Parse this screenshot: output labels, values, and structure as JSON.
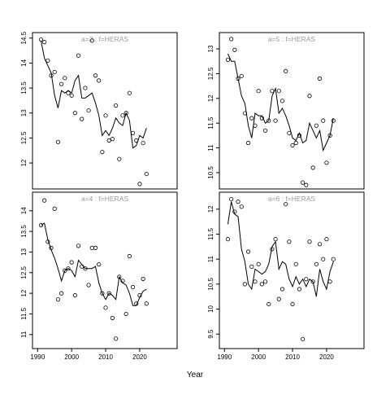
{
  "xlabel": "Year",
  "chart_data": [
    {
      "type": "line",
      "title": "a=3 : f=HERAS",
      "x": [
        1991,
        1992,
        1993,
        1994,
        1995,
        1996,
        1997,
        1998,
        1999,
        2000,
        2001,
        2002,
        2003,
        2004,
        2005,
        2006,
        2007,
        2008,
        2009,
        2010,
        2011,
        2012,
        2013,
        2014,
        2015,
        2016,
        2017,
        2018,
        2019,
        2020,
        2021,
        2022
      ],
      "series": [
        {
          "marker": "circle",
          "color": "#000000",
          "values": [
            14.47,
            14.42,
            14.05,
            13.75,
            13.82,
            12.42,
            13.58,
            13.7,
            13.4,
            13.35,
            13.0,
            14.15,
            12.88,
            13.5,
            13.05,
            14.45,
            13.75,
            13.65,
            12.22,
            12.95,
            12.45,
            12.48,
            13.15,
            12.08,
            12.95,
            13.0,
            13.4,
            12.6,
            12.45,
            11.58,
            12.4,
            11.78
          ]
        },
        {
          "marker": "line",
          "color": "#000000",
          "values": [
            14.45,
            14.1,
            13.95,
            13.8,
            13.35,
            13.1,
            13.45,
            13.4,
            13.45,
            13.4,
            13.65,
            13.75,
            13.3,
            13.3,
            13.35,
            13.4,
            13.2,
            12.95,
            12.55,
            12.65,
            12.55,
            12.7,
            12.9,
            12.8,
            12.75,
            13.0,
            12.85,
            12.3,
            12.35,
            12.55,
            12.5,
            12.7
          ]
        }
      ],
      "xlim": [
        1988.5,
        2031
      ],
      "ylim": [
        11.48,
        14.61
      ],
      "yticks": [
        12.0,
        12.5,
        13.0,
        13.5,
        14.0,
        14.5
      ]
    },
    {
      "type": "line",
      "title": "a=5 : f=HERAS",
      "x": [
        1991,
        1992,
        1993,
        1994,
        1995,
        1996,
        1997,
        1998,
        1999,
        2000,
        2001,
        2002,
        2003,
        2004,
        2005,
        2006,
        2007,
        2008,
        2009,
        2010,
        2011,
        2012,
        2013,
        2014,
        2015,
        2016,
        2017,
        2018,
        2019,
        2020,
        2021,
        2022
      ],
      "series": [
        {
          "marker": "circle",
          "color": "#000000",
          "values": [
            12.78,
            13.2,
            12.98,
            12.4,
            12.45,
            11.7,
            11.1,
            11.6,
            11.45,
            12.15,
            11.6,
            11.35,
            11.55,
            12.15,
            11.55,
            12.15,
            11.95,
            12.55,
            11.3,
            11.05,
            11.1,
            11.25,
            10.3,
            10.25,
            12.05,
            10.6,
            11.45,
            12.4,
            11.55,
            10.7,
            11.25,
            11.55
          ]
        },
        {
          "marker": "line",
          "color": "#000000",
          "values": [
            12.9,
            12.75,
            12.75,
            12.4,
            12.05,
            11.9,
            11.45,
            11.2,
            11.7,
            11.65,
            11.65,
            11.5,
            11.55,
            12.05,
            12.2,
            11.7,
            11.8,
            11.65,
            11.45,
            11.2,
            11.15,
            11.3,
            11.1,
            11.15,
            11.5,
            11.35,
            11.2,
            11.35,
            10.95,
            11.1,
            11.25,
            11.6
          ]
        }
      ],
      "xlim": [
        1988.5,
        2031
      ],
      "ylim": [
        10.17,
        13.33
      ],
      "yticks": [
        10.5,
        11.0,
        11.5,
        12.0,
        12.5,
        13.0
      ]
    },
    {
      "type": "line",
      "title": "a=4 : f=HERAS",
      "x": [
        1991,
        1992,
        1993,
        1994,
        1995,
        1996,
        1997,
        1998,
        1999,
        2000,
        2001,
        2002,
        2003,
        2004,
        2005,
        2006,
        2007,
        2008,
        2009,
        2010,
        2011,
        2012,
        2013,
        2014,
        2015,
        2016,
        2017,
        2018,
        2019,
        2020,
        2021,
        2022
      ],
      "series": [
        {
          "marker": "circle",
          "color": "#000000",
          "values": [
            13.65,
            14.25,
            13.25,
            13.1,
            14.05,
            11.85,
            12.0,
            12.55,
            12.6,
            12.75,
            11.95,
            13.15,
            12.65,
            12.6,
            12.2,
            13.1,
            13.1,
            12.7,
            12.0,
            11.65,
            12.0,
            11.4,
            10.9,
            12.4,
            12.3,
            11.5,
            12.9,
            12.15,
            11.75,
            11.95,
            12.35,
            11.75
          ]
        },
        {
          "marker": "line",
          "color": "#000000",
          "values": [
            13.65,
            13.7,
            13.3,
            13.05,
            12.85,
            12.6,
            12.3,
            12.55,
            12.6,
            12.55,
            12.4,
            12.8,
            12.7,
            12.6,
            12.6,
            12.6,
            12.65,
            12.25,
            12.0,
            11.85,
            12.0,
            11.95,
            11.85,
            12.4,
            12.25,
            12.2,
            12.0,
            11.7,
            11.7,
            11.9,
            12.05,
            12.1
          ]
        }
      ],
      "xlim": [
        1988.5,
        2031
      ],
      "ylim": [
        10.66,
        14.45
      ],
      "xticks": [
        1990,
        2000,
        2010,
        2020
      ],
      "yticks": [
        11.0,
        11.5,
        12.0,
        12.5,
        13.0,
        13.5,
        14.0
      ]
    },
    {
      "type": "line",
      "title": "a=6 : f=HERAS",
      "x": [
        1991,
        1992,
        1993,
        1994,
        1995,
        1996,
        1997,
        1998,
        1999,
        2000,
        2001,
        2002,
        2003,
        2004,
        2005,
        2006,
        2007,
        2008,
        2009,
        2010,
        2011,
        2012,
        2013,
        2014,
        2015,
        2016,
        2017,
        2018,
        2019,
        2020,
        2021,
        2022
      ],
      "series": [
        {
          "marker": "circle",
          "color": "#000000",
          "values": [
            11.4,
            12.2,
            11.95,
            12.15,
            12.05,
            10.5,
            11.15,
            10.85,
            10.55,
            10.9,
            10.5,
            10.55,
            10.1,
            11.2,
            11.4,
            10.2,
            10.4,
            12.1,
            11.35,
            10.1,
            10.9,
            10.4,
            9.4,
            10.6,
            11.35,
            10.55,
            10.9,
            11.3,
            11.0,
            11.4,
            10.55,
            11.0
          ]
        },
        {
          "marker": "line",
          "color": "#000000",
          "values": [
            11.7,
            12.15,
            11.9,
            11.85,
            11.2,
            10.95,
            10.5,
            10.4,
            10.8,
            10.75,
            10.7,
            10.75,
            10.9,
            11.25,
            11.35,
            10.8,
            10.95,
            10.9,
            10.6,
            10.45,
            10.65,
            10.5,
            10.6,
            10.45,
            10.6,
            10.55,
            10.25,
            10.8,
            10.55,
            10.4,
            10.75,
            10.95
          ]
        }
      ],
      "xlim": [
        1988.5,
        2031
      ],
      "ylim": [
        9.21,
        12.34
      ],
      "xticks": [
        1990,
        2000,
        2010,
        2020
      ],
      "yticks": [
        9.5,
        10.0,
        10.5,
        11.0,
        11.5,
        12.0
      ]
    }
  ]
}
